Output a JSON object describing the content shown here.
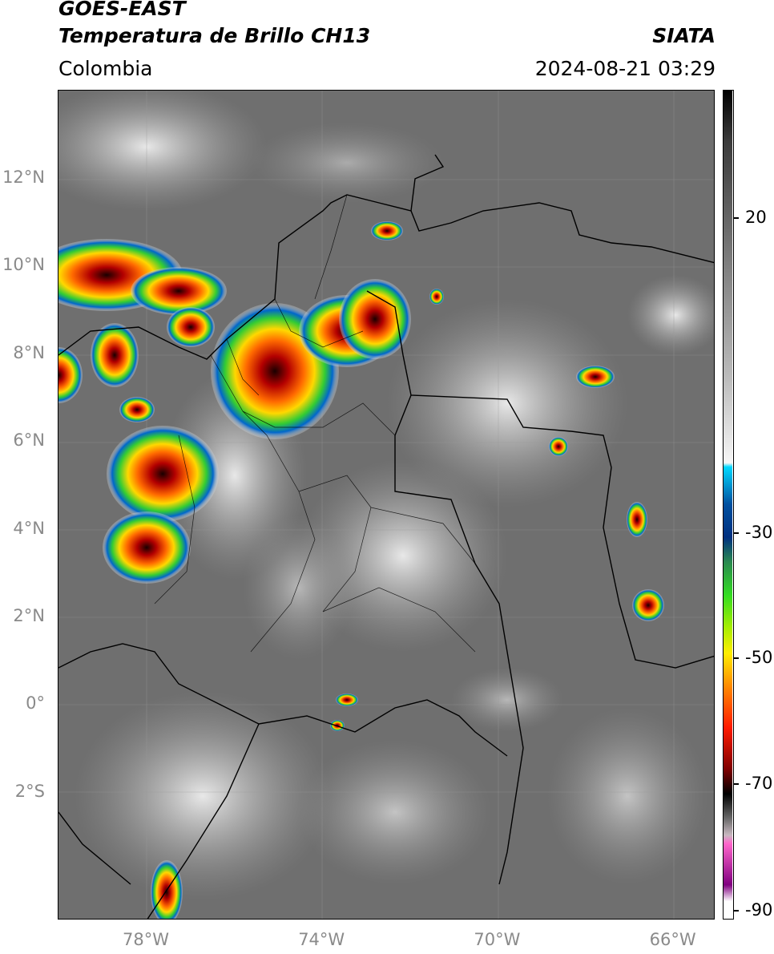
{
  "header": {
    "satellite": "GOES-EAST",
    "product": "Temperatura de Brillo CH13",
    "source": "SIATA",
    "region": "Colombia",
    "timestamp": "2024-08-21 03:29"
  },
  "map": {
    "lat_ticks": [
      {
        "label": "12°N",
        "value": 12
      },
      {
        "label": "10°N",
        "value": 10
      },
      {
        "label": "8°N",
        "value": 8
      },
      {
        "label": "6°N",
        "value": 6
      },
      {
        "label": "4°N",
        "value": 4
      },
      {
        "label": "2°N",
        "value": 2
      },
      {
        "label": "0°",
        "value": 0
      },
      {
        "label": "2°S",
        "value": -2
      }
    ],
    "lon_ticks": [
      {
        "label": "78°W",
        "value": -78
      },
      {
        "label": "74°W",
        "value": -74
      },
      {
        "label": "70°W",
        "value": -70
      },
      {
        "label": "66°W",
        "value": -66
      }
    ],
    "background_color": "#6e6e6e",
    "border_color": "#000000"
  },
  "colorbar": {
    "ticks": [
      {
        "label": "20",
        "value": 20
      },
      {
        "label": "-30",
        "value": -30
      },
      {
        "label": "-50",
        "value": -50
      },
      {
        "label": "-70",
        "value": -70
      },
      {
        "label": "-90",
        "value": -90
      }
    ]
  }
}
